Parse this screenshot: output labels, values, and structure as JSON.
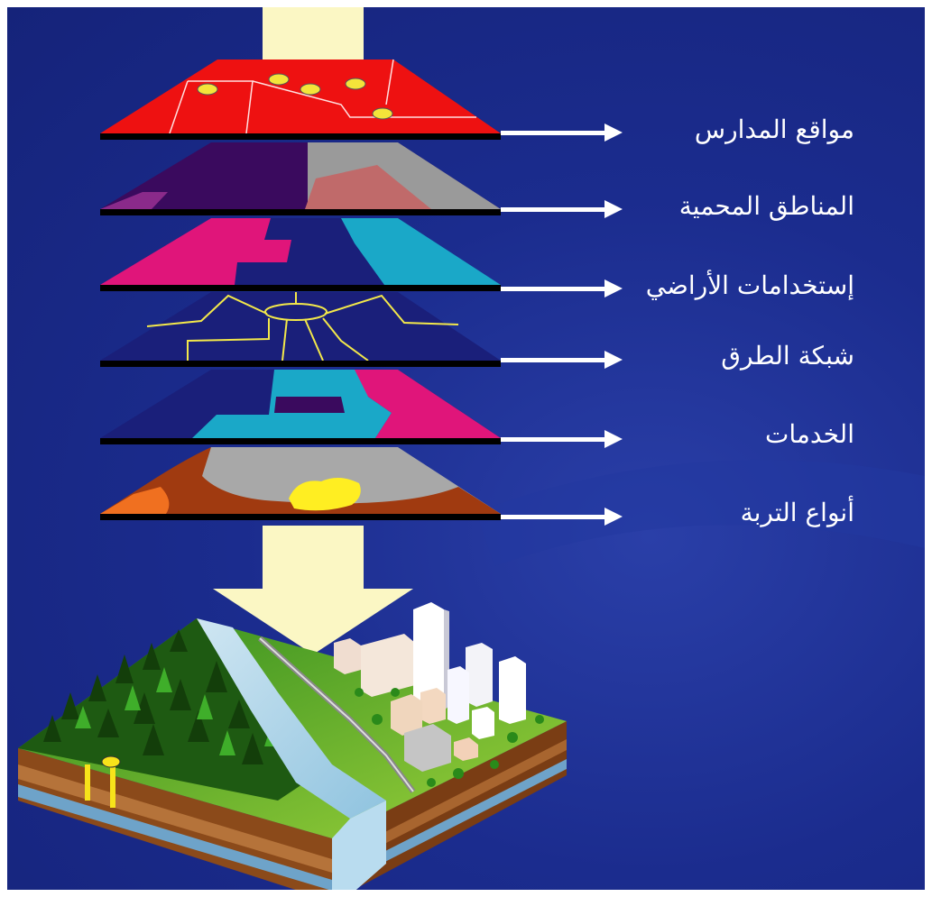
{
  "layers": [
    {
      "id": "schools",
      "label": "مواقع المدارس"
    },
    {
      "id": "protected",
      "label": "المناطق المحمية"
    },
    {
      "id": "landuse",
      "label": "إستخدامات الأراضي"
    },
    {
      "id": "roads",
      "label": "شبكة الطرق"
    },
    {
      "id": "services",
      "label": "الخدمات"
    },
    {
      "id": "soil",
      "label": "أنواع التربة"
    }
  ],
  "colors": {
    "background": "#1b2c8e",
    "arrow": "#fbf7c4",
    "schools": "#ee1111",
    "protected_dark": "#3a0a5e",
    "protected_gray": "#9a9a9a",
    "landuse_pink": "#e0157a",
    "landuse_cyan": "#1aa8c8",
    "roads_line": "#f3e84a",
    "soil_gray": "#a8a8a8",
    "soil_brown": "#a03a10",
    "soil_yellow": "#ffee22"
  }
}
